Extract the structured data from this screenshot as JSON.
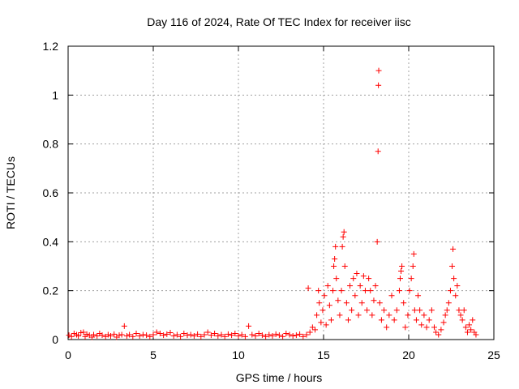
{
  "chart_data": {
    "type": "scatter",
    "title": "Day 116 of 2024, Rate Of TEC Index for receiver iisc",
    "xlabel": "GPS time / hours",
    "ylabel": "ROTI / TECUs",
    "xlim": [
      0,
      25
    ],
    "ylim": [
      0,
      1.2
    ],
    "xticks": [
      0,
      5,
      10,
      15,
      20,
      25
    ],
    "xtick_labels": [
      "0",
      "5",
      "10",
      "15",
      "20",
      "25"
    ],
    "yticks": [
      0,
      0.2,
      0.4,
      0.6,
      0.8,
      1.0,
      1.2
    ],
    "ytick_labels": [
      "0",
      "0.2",
      "0.4",
      "0.6",
      "0.8",
      "1",
      "1.2"
    ],
    "grid": true,
    "marker": "+",
    "marker_color": "#ff0000",
    "series": [
      {
        "name": "ROTI",
        "points": [
          [
            0.05,
            0.018
          ],
          [
            0.2,
            0.012
          ],
          [
            0.35,
            0.025
          ],
          [
            0.5,
            0.02
          ],
          [
            0.6,
            0.015
          ],
          [
            0.75,
            0.028
          ],
          [
            0.9,
            0.03
          ],
          [
            1.0,
            0.012
          ],
          [
            1.1,
            0.022
          ],
          [
            1.25,
            0.018
          ],
          [
            1.4,
            0.01
          ],
          [
            1.5,
            0.02
          ],
          [
            1.7,
            0.015
          ],
          [
            1.85,
            0.025
          ],
          [
            2.0,
            0.018
          ],
          [
            2.2,
            0.012
          ],
          [
            2.35,
            0.02
          ],
          [
            2.5,
            0.015
          ],
          [
            2.7,
            0.022
          ],
          [
            2.85,
            0.01
          ],
          [
            3.0,
            0.018
          ],
          [
            3.15,
            0.02
          ],
          [
            3.3,
            0.055
          ],
          [
            3.45,
            0.015
          ],
          [
            3.6,
            0.02
          ],
          [
            3.8,
            0.012
          ],
          [
            4.0,
            0.025
          ],
          [
            4.2,
            0.015
          ],
          [
            4.4,
            0.02
          ],
          [
            4.6,
            0.018
          ],
          [
            4.8,
            0.012
          ],
          [
            5.0,
            0.02
          ],
          [
            5.2,
            0.03
          ],
          [
            5.4,
            0.025
          ],
          [
            5.6,
            0.018
          ],
          [
            5.8,
            0.022
          ],
          [
            6.0,
            0.028
          ],
          [
            6.2,
            0.015
          ],
          [
            6.4,
            0.02
          ],
          [
            6.6,
            0.012
          ],
          [
            6.8,
            0.025
          ],
          [
            7.0,
            0.018
          ],
          [
            7.2,
            0.02
          ],
          [
            7.4,
            0.015
          ],
          [
            7.6,
            0.022
          ],
          [
            7.8,
            0.012
          ],
          [
            8.0,
            0.02
          ],
          [
            8.2,
            0.03
          ],
          [
            8.4,
            0.018
          ],
          [
            8.6,
            0.025
          ],
          [
            8.8,
            0.015
          ],
          [
            9.0,
            0.02
          ],
          [
            9.2,
            0.012
          ],
          [
            9.4,
            0.022
          ],
          [
            9.6,
            0.018
          ],
          [
            9.8,
            0.025
          ],
          [
            10.0,
            0.015
          ],
          [
            10.2,
            0.02
          ],
          [
            10.4,
            0.012
          ],
          [
            10.6,
            0.055
          ],
          [
            10.8,
            0.02
          ],
          [
            11.0,
            0.015
          ],
          [
            11.2,
            0.025
          ],
          [
            11.4,
            0.018
          ],
          [
            11.6,
            0.012
          ],
          [
            11.8,
            0.02
          ],
          [
            12.0,
            0.015
          ],
          [
            12.2,
            0.022
          ],
          [
            12.4,
            0.018
          ],
          [
            12.6,
            0.012
          ],
          [
            12.8,
            0.025
          ],
          [
            13.0,
            0.02
          ],
          [
            13.2,
            0.015
          ],
          [
            13.4,
            0.018
          ],
          [
            13.6,
            0.022
          ],
          [
            13.8,
            0.012
          ],
          [
            14.0,
            0.02
          ],
          [
            14.1,
            0.21
          ],
          [
            14.2,
            0.03
          ],
          [
            14.35,
            0.05
          ],
          [
            14.5,
            0.04
          ],
          [
            14.6,
            0.1
          ],
          [
            14.7,
            0.2
          ],
          [
            14.75,
            0.15
          ],
          [
            14.85,
            0.07
          ],
          [
            14.95,
            0.12
          ],
          [
            15.05,
            0.18
          ],
          [
            15.15,
            0.06
          ],
          [
            15.25,
            0.22
          ],
          [
            15.35,
            0.14
          ],
          [
            15.45,
            0.08
          ],
          [
            15.55,
            0.2
          ],
          [
            15.6,
            0.3
          ],
          [
            15.65,
            0.33
          ],
          [
            15.7,
            0.38
          ],
          [
            15.75,
            0.25
          ],
          [
            15.85,
            0.16
          ],
          [
            15.95,
            0.1
          ],
          [
            16.05,
            0.2
          ],
          [
            16.1,
            0.38
          ],
          [
            16.15,
            0.42
          ],
          [
            16.2,
            0.44
          ],
          [
            16.25,
            0.3
          ],
          [
            16.35,
            0.15
          ],
          [
            16.45,
            0.08
          ],
          [
            16.55,
            0.22
          ],
          [
            16.65,
            0.12
          ],
          [
            16.75,
            0.25
          ],
          [
            16.85,
            0.18
          ],
          [
            16.95,
            0.27
          ],
          [
            17.05,
            0.1
          ],
          [
            17.15,
            0.22
          ],
          [
            17.25,
            0.15
          ],
          [
            17.35,
            0.26
          ],
          [
            17.45,
            0.2
          ],
          [
            17.55,
            0.12
          ],
          [
            17.65,
            0.25
          ],
          [
            17.75,
            0.2
          ],
          [
            17.85,
            0.1
          ],
          [
            17.95,
            0.16
          ],
          [
            18.05,
            0.22
          ],
          [
            18.15,
            0.4
          ],
          [
            18.2,
            0.77
          ],
          [
            18.22,
            1.04
          ],
          [
            18.24,
            1.1
          ],
          [
            18.3,
            0.15
          ],
          [
            18.4,
            0.08
          ],
          [
            18.55,
            0.12
          ],
          [
            18.7,
            0.05
          ],
          [
            18.85,
            0.1
          ],
          [
            19.0,
            0.18
          ],
          [
            19.15,
            0.08
          ],
          [
            19.3,
            0.12
          ],
          [
            19.45,
            0.2
          ],
          [
            19.5,
            0.25
          ],
          [
            19.55,
            0.28
          ],
          [
            19.6,
            0.3
          ],
          [
            19.7,
            0.15
          ],
          [
            19.8,
            0.05
          ],
          [
            19.95,
            0.1
          ],
          [
            20.05,
            0.2
          ],
          [
            20.15,
            0.25
          ],
          [
            20.25,
            0.3
          ],
          [
            20.3,
            0.35
          ],
          [
            20.35,
            0.12
          ],
          [
            20.45,
            0.08
          ],
          [
            20.55,
            0.18
          ],
          [
            20.65,
            0.12
          ],
          [
            20.75,
            0.06
          ],
          [
            20.9,
            0.1
          ],
          [
            21.05,
            0.05
          ],
          [
            21.2,
            0.08
          ],
          [
            21.35,
            0.12
          ],
          [
            21.5,
            0.05
          ],
          [
            21.6,
            0.03
          ],
          [
            21.75,
            0.02
          ],
          [
            21.9,
            0.04
          ],
          [
            22.05,
            0.07
          ],
          [
            22.15,
            0.1
          ],
          [
            22.25,
            0.12
          ],
          [
            22.35,
            0.15
          ],
          [
            22.45,
            0.2
          ],
          [
            22.55,
            0.3
          ],
          [
            22.6,
            0.37
          ],
          [
            22.65,
            0.25
          ],
          [
            22.75,
            0.18
          ],
          [
            22.85,
            0.22
          ],
          [
            22.95,
            0.12
          ],
          [
            23.05,
            0.1
          ],
          [
            23.15,
            0.08
          ],
          [
            23.25,
            0.12
          ],
          [
            23.35,
            0.05
          ],
          [
            23.45,
            0.03
          ],
          [
            23.55,
            0.06
          ],
          [
            23.65,
            0.04
          ],
          [
            23.75,
            0.08
          ],
          [
            23.85,
            0.03
          ],
          [
            23.95,
            0.02
          ]
        ]
      }
    ]
  }
}
